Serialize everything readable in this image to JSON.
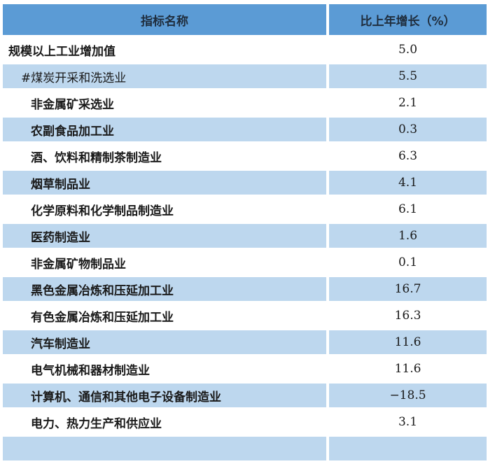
{
  "table": {
    "headers": {
      "name": "指标名称",
      "growth": "比上年增长（%）"
    },
    "rows": [
      {
        "name": "规模以上工业增加值",
        "value": "5.0"
      },
      {
        "name": "#煤炭开采和洗选业",
        "value": "5.5"
      },
      {
        "name": "非金属矿采选业",
        "value": "2.1"
      },
      {
        "name": "农副食品加工业",
        "value": "0.3"
      },
      {
        "name": "酒、饮料和精制茶制造业",
        "value": "6.3"
      },
      {
        "name": "烟草制品业",
        "value": "4.1"
      },
      {
        "name": "化学原料和化学制品制造业",
        "value": "6.1"
      },
      {
        "name": "医药制造业",
        "value": "1.6"
      },
      {
        "name": "非金属矿物制品业",
        "value": "0.1"
      },
      {
        "name": "黑色金属冶炼和压延加工业",
        "value": "16.7"
      },
      {
        "name": "有色金属冶炼和压延加工业",
        "value": "16.3"
      },
      {
        "name": "汽车制造业",
        "value": "11.6"
      },
      {
        "name": "电气机械和器材制造业",
        "value": "11.6"
      },
      {
        "name": "计算机、通信和其他电子设备制造业",
        "value": "−18.5"
      },
      {
        "name": "电力、热力生产和供应业",
        "value": "3.1"
      },
      {
        "name": "",
        "value": ""
      }
    ]
  },
  "colors": {
    "header": "#5b9bd5",
    "stripe": "#bdd7ee"
  }
}
